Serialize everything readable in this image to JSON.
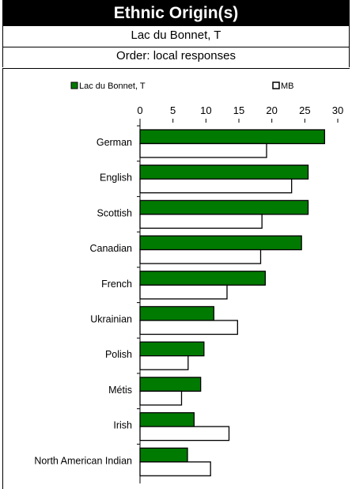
{
  "header": {
    "title": "Ethnic Origin(s)",
    "subtitle": "Lac du Bonnet, T",
    "order_note": "Order: local responses"
  },
  "colors": {
    "local": "#007a00",
    "province": "#ffffff",
    "outline": "#000000"
  },
  "chart_data": {
    "type": "bar",
    "orientation": "horizontal",
    "categories": [
      "German",
      "English",
      "Scottish",
      "Canadian",
      "French",
      "Ukrainian",
      "Polish",
      "Métis",
      "Irish",
      "North American Indian"
    ],
    "series": [
      {
        "name": "Lac du Bonnet, T",
        "values": [
          28.0,
          25.5,
          25.5,
          24.5,
          19.0,
          11.2,
          9.7,
          9.2,
          8.2,
          7.2
        ]
      },
      {
        "name": "MB",
        "values": [
          19.2,
          23.0,
          18.5,
          18.3,
          13.2,
          14.8,
          7.3,
          6.3,
          13.5,
          10.7
        ]
      }
    ],
    "xticks": [
      "0",
      "5",
      "10",
      "15",
      "20",
      "25",
      "30"
    ],
    "xlim": [
      0,
      30
    ],
    "legend_position": "top",
    "grid": false
  }
}
